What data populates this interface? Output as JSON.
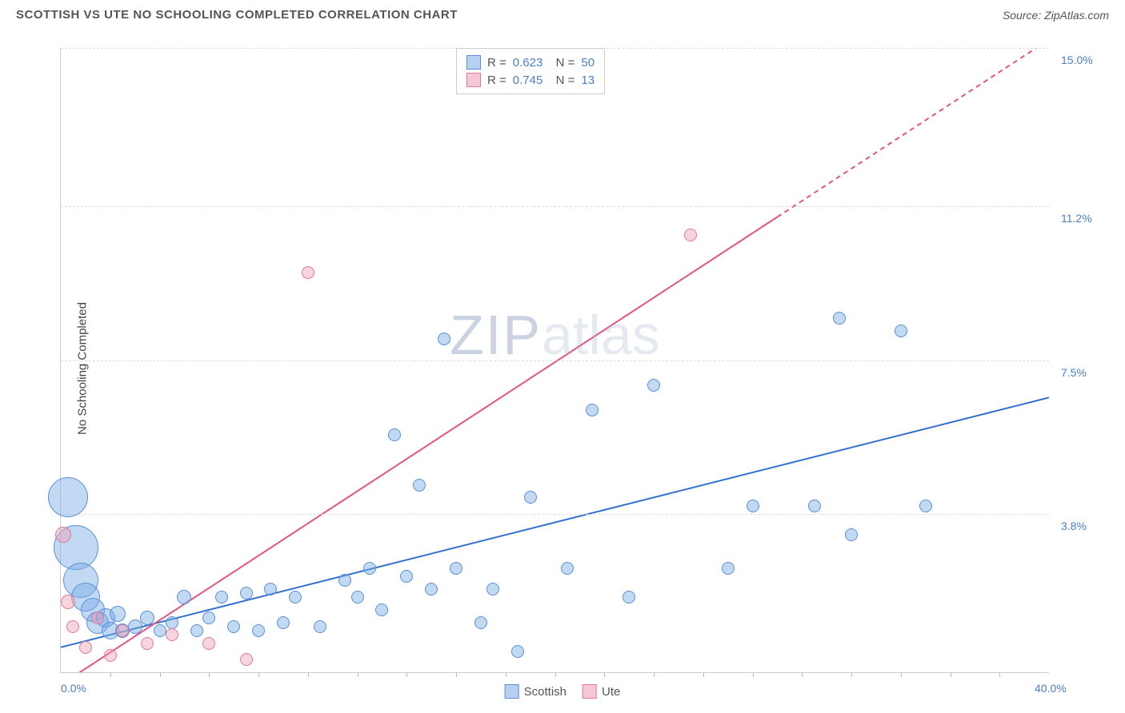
{
  "header": {
    "title": "SCOTTISH VS UTE NO SCHOOLING COMPLETED CORRELATION CHART",
    "source": "Source: ZipAtlas.com"
  },
  "chart": {
    "type": "scatter",
    "ylabel": "No Schooling Completed",
    "xlim": [
      0,
      40
    ],
    "ylim": [
      0,
      15
    ],
    "xmin_label": "0.0%",
    "xmax_label": "40.0%",
    "yticks": [
      {
        "v": 3.8,
        "label": "3.8%"
      },
      {
        "v": 7.5,
        "label": "7.5%"
      },
      {
        "v": 11.2,
        "label": "11.2%"
      },
      {
        "v": 15.0,
        "label": "15.0%"
      }
    ],
    "xtick_step": 2,
    "background": "#ffffff",
    "grid_color": "#dddddd",
    "watermark": {
      "part1": "ZIP",
      "part2": "atlas"
    },
    "series": [
      {
        "name": "Scottish",
        "color_fill": "rgba(120,170,230,0.45)",
        "color_stroke": "#5a8fd6",
        "swatch_fill": "#b8d0f0",
        "swatch_border": "#5a8fd6",
        "r": "0.623",
        "n": "50",
        "trend": {
          "x1": 0,
          "y1": 0.6,
          "x2": 40,
          "y2": 6.6,
          "color": "#2f6fd0",
          "dash_from_x": null
        },
        "points": [
          {
            "x": 0.3,
            "y": 4.2,
            "r": 25
          },
          {
            "x": 0.6,
            "y": 3.0,
            "r": 28
          },
          {
            "x": 0.8,
            "y": 2.2,
            "r": 22
          },
          {
            "x": 1.0,
            "y": 1.8,
            "r": 18
          },
          {
            "x": 1.3,
            "y": 1.5,
            "r": 15
          },
          {
            "x": 1.5,
            "y": 1.2,
            "r": 14
          },
          {
            "x": 1.8,
            "y": 1.3,
            "r": 12
          },
          {
            "x": 2.0,
            "y": 1.0,
            "r": 11
          },
          {
            "x": 2.3,
            "y": 1.4,
            "r": 10
          },
          {
            "x": 2.5,
            "y": 1.0,
            "r": 9
          },
          {
            "x": 3.0,
            "y": 1.1,
            "r": 9
          },
          {
            "x": 3.5,
            "y": 1.3,
            "r": 9
          },
          {
            "x": 4.0,
            "y": 1.0,
            "r": 8
          },
          {
            "x": 4.5,
            "y": 1.2,
            "r": 8
          },
          {
            "x": 5.0,
            "y": 1.8,
            "r": 9
          },
          {
            "x": 5.5,
            "y": 1.0,
            "r": 8
          },
          {
            "x": 6.0,
            "y": 1.3,
            "r": 8
          },
          {
            "x": 6.5,
            "y": 1.8,
            "r": 8
          },
          {
            "x": 7.0,
            "y": 1.1,
            "r": 8
          },
          {
            "x": 7.5,
            "y": 1.9,
            "r": 8
          },
          {
            "x": 8.0,
            "y": 1.0,
            "r": 8
          },
          {
            "x": 8.5,
            "y": 2.0,
            "r": 8
          },
          {
            "x": 9.0,
            "y": 1.2,
            "r": 8
          },
          {
            "x": 9.5,
            "y": 1.8,
            "r": 8
          },
          {
            "x": 10.5,
            "y": 1.1,
            "r": 8
          },
          {
            "x": 11.5,
            "y": 2.2,
            "r": 8
          },
          {
            "x": 12.0,
            "y": 1.8,
            "r": 8
          },
          {
            "x": 12.5,
            "y": 2.5,
            "r": 8
          },
          {
            "x": 13.0,
            "y": 1.5,
            "r": 8
          },
          {
            "x": 13.5,
            "y": 5.7,
            "r": 8
          },
          {
            "x": 14.0,
            "y": 2.3,
            "r": 8
          },
          {
            "x": 14.5,
            "y": 4.5,
            "r": 8
          },
          {
            "x": 15.0,
            "y": 2.0,
            "r": 8
          },
          {
            "x": 15.5,
            "y": 8.0,
            "r": 8
          },
          {
            "x": 16.0,
            "y": 2.5,
            "r": 8
          },
          {
            "x": 17.0,
            "y": 1.2,
            "r": 8
          },
          {
            "x": 17.5,
            "y": 2.0,
            "r": 8
          },
          {
            "x": 18.5,
            "y": 0.5,
            "r": 8
          },
          {
            "x": 19.0,
            "y": 4.2,
            "r": 8
          },
          {
            "x": 20.5,
            "y": 2.5,
            "r": 8
          },
          {
            "x": 21.5,
            "y": 6.3,
            "r": 8
          },
          {
            "x": 23.0,
            "y": 1.8,
            "r": 8
          },
          {
            "x": 24.0,
            "y": 6.9,
            "r": 8
          },
          {
            "x": 27.0,
            "y": 2.5,
            "r": 8
          },
          {
            "x": 28.0,
            "y": 4.0,
            "r": 8
          },
          {
            "x": 30.5,
            "y": 4.0,
            "r": 8
          },
          {
            "x": 31.5,
            "y": 8.5,
            "r": 8
          },
          {
            "x": 32.0,
            "y": 3.3,
            "r": 8
          },
          {
            "x": 34.0,
            "y": 8.2,
            "r": 8
          },
          {
            "x": 35.0,
            "y": 4.0,
            "r": 8
          }
        ]
      },
      {
        "name": "Ute",
        "color_fill": "rgba(240,160,180,0.45)",
        "color_stroke": "#e07a9a",
        "swatch_fill": "#f5c6d4",
        "swatch_border": "#e07a9a",
        "r": "0.745",
        "n": "13",
        "trend": {
          "x1": 0,
          "y1": -0.3,
          "x2": 40,
          "y2": 15.2,
          "color": "#e55384",
          "dash_from_x": 29
        },
        "points": [
          {
            "x": 0.1,
            "y": 3.3,
            "r": 10
          },
          {
            "x": 0.3,
            "y": 1.7,
            "r": 9
          },
          {
            "x": 0.5,
            "y": 1.1,
            "r": 8
          },
          {
            "x": 1.0,
            "y": 0.6,
            "r": 8
          },
          {
            "x": 1.5,
            "y": 1.3,
            "r": 8
          },
          {
            "x": 2.0,
            "y": 0.4,
            "r": 8
          },
          {
            "x": 2.5,
            "y": 1.0,
            "r": 8
          },
          {
            "x": 3.5,
            "y": 0.7,
            "r": 8
          },
          {
            "x": 4.5,
            "y": 0.9,
            "r": 8
          },
          {
            "x": 6.0,
            "y": 0.7,
            "r": 8
          },
          {
            "x": 7.5,
            "y": 0.3,
            "r": 8
          },
          {
            "x": 10.0,
            "y": 9.6,
            "r": 8
          },
          {
            "x": 25.5,
            "y": 10.5,
            "r": 8
          }
        ]
      }
    ],
    "legend_bottom": [
      {
        "name": "Scottish",
        "fill": "#b8d0f0",
        "border": "#5a8fd6"
      },
      {
        "name": "Ute",
        "fill": "#f5c6d4",
        "border": "#e07a9a"
      }
    ]
  }
}
